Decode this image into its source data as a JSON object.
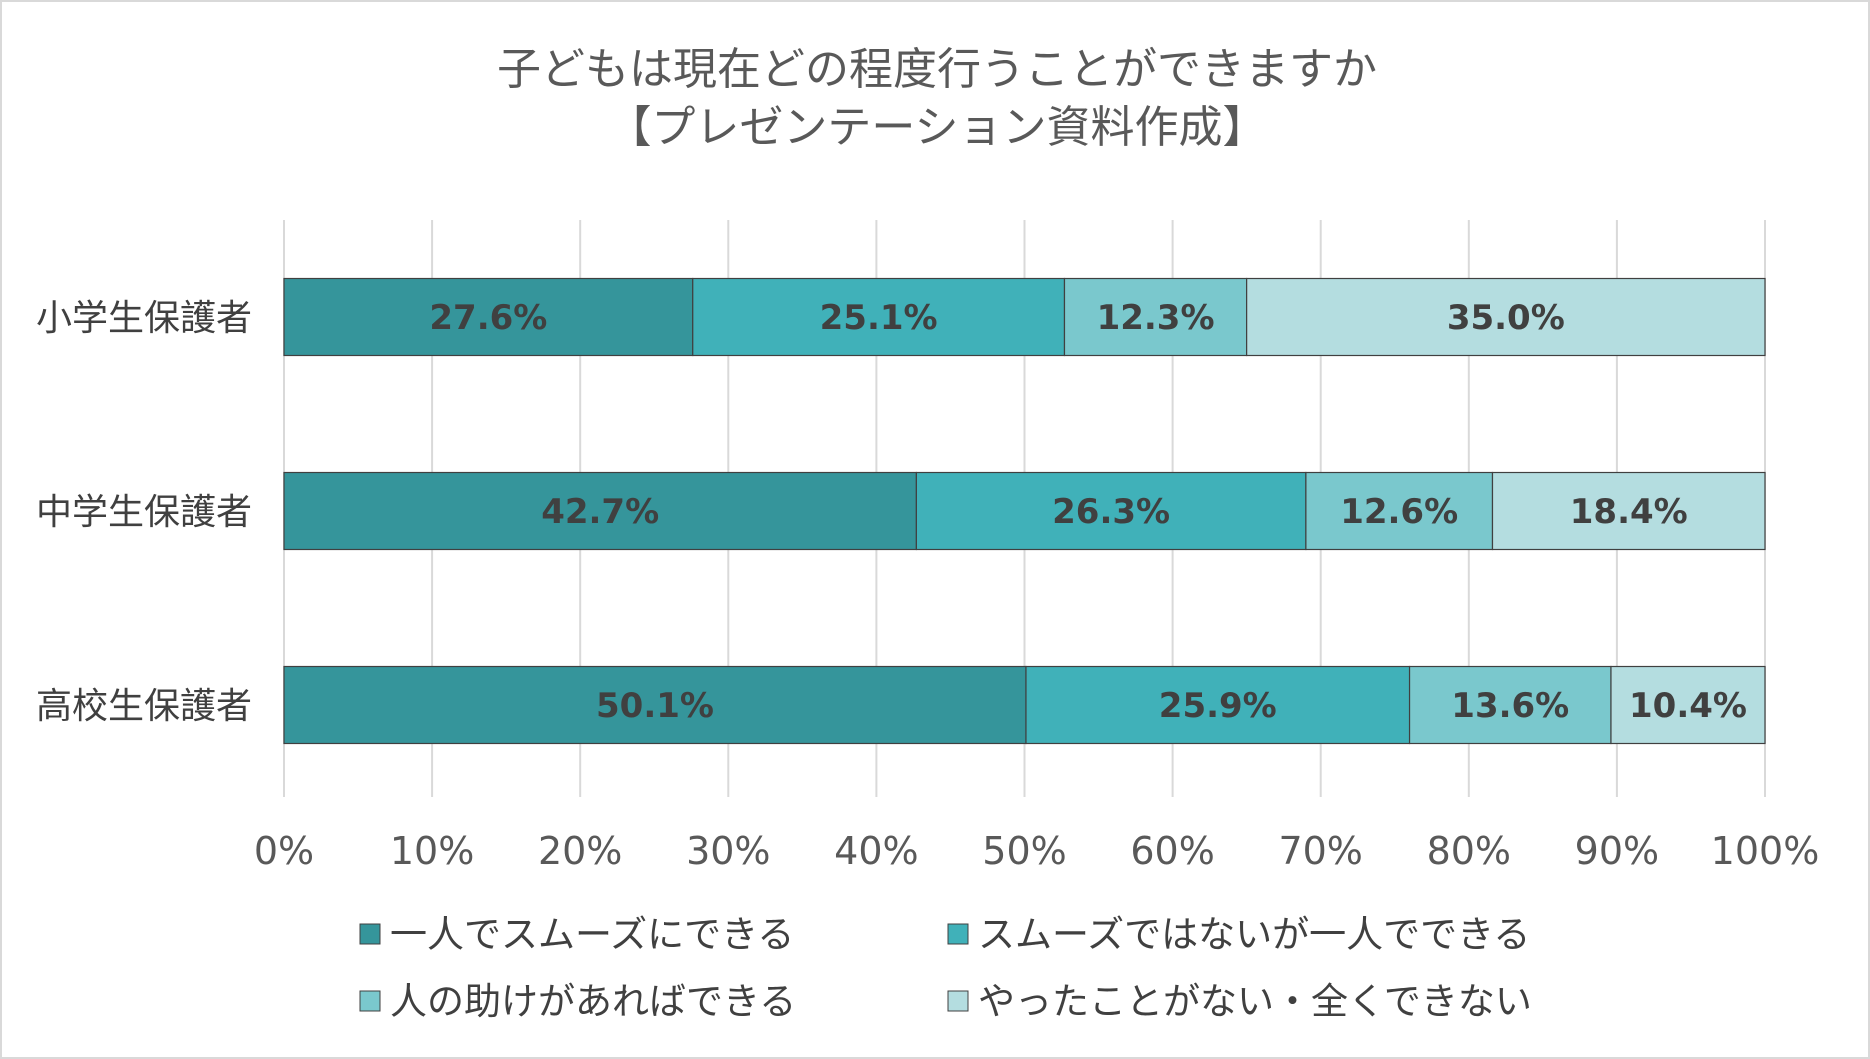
{
  "chart_data": {
    "type": "bar",
    "orientation": "horizontal",
    "stacked": "percent",
    "title": "子どもは現在どの程度行うことができますか",
    "subtitle": "【プレゼンテーション資料作成】",
    "categories": [
      "小学生保護者",
      "中学生保護者",
      "高校生保護者"
    ],
    "series": [
      {
        "name": "一人でスムーズにできる",
        "color": "#35959b",
        "values": [
          27.6,
          42.7,
          50.1
        ],
        "labels": [
          "27.6%",
          "42.7%",
          "50.1%"
        ]
      },
      {
        "name": "スムーズではないが一人でできる",
        "color": "#40b1b9",
        "values": [
          25.1,
          26.3,
          25.9
        ],
        "labels": [
          "25.1%",
          "26.3%",
          "25.9%"
        ]
      },
      {
        "name": "人の助けがあればできる",
        "color": "#7ac8cd",
        "values": [
          12.3,
          12.6,
          13.6
        ],
        "labels": [
          "12.3%",
          "12.6%",
          "13.6%"
        ]
      },
      {
        "name": "やったことがない・全くできない",
        "color": "#b4dde0",
        "values": [
          35.0,
          18.4,
          10.4
        ],
        "labels": [
          "35.0%",
          "18.4%",
          "10.4%"
        ]
      }
    ],
    "x_ticks": [
      "0%",
      "10%",
      "20%",
      "30%",
      "40%",
      "50%",
      "60%",
      "70%",
      "80%",
      "90%",
      "100%"
    ],
    "xlim": [
      0,
      100
    ],
    "grid": "vertical",
    "legend_position": "bottom"
  }
}
